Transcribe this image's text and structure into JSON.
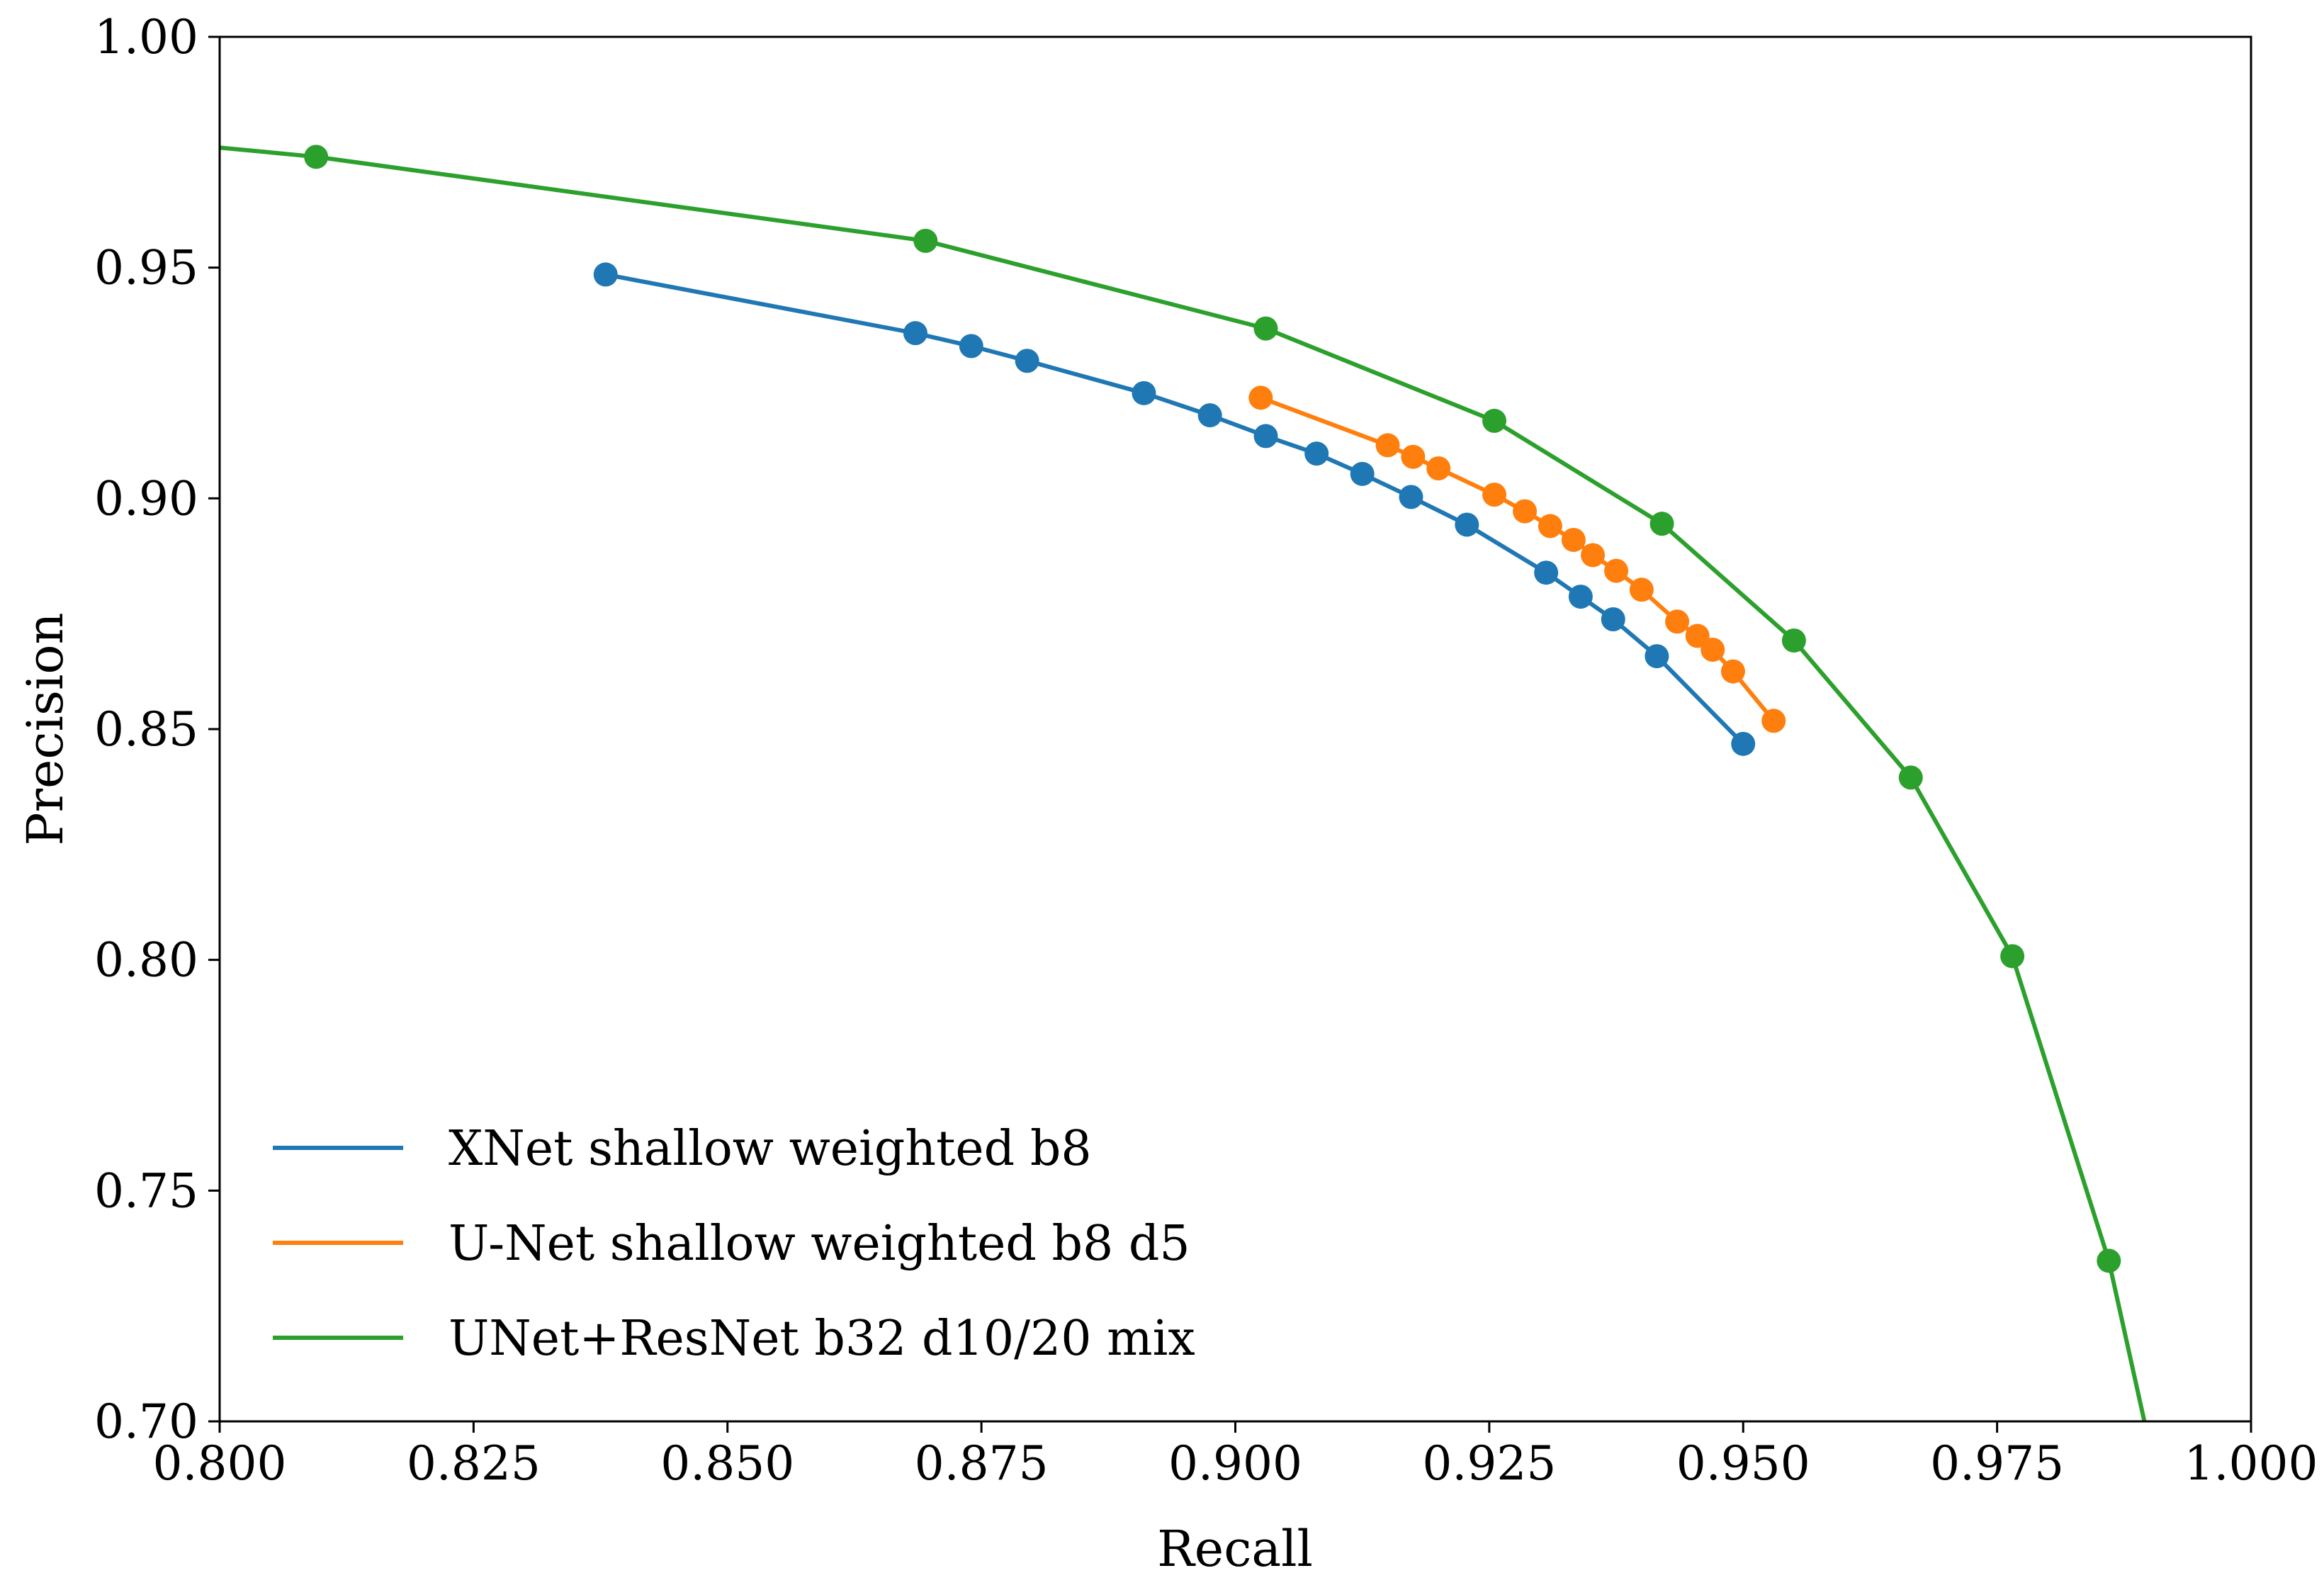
{
  "chart_data": {
    "type": "line",
    "title": "",
    "xlabel": "Recall",
    "ylabel": "Precision",
    "xlim": [
      0.8,
      1.0
    ],
    "ylim": [
      0.7,
      1.0
    ],
    "xticks": [
      0.8,
      0.825,
      0.85,
      0.875,
      0.9,
      0.925,
      0.95,
      0.975,
      1.0
    ],
    "xtick_labels": [
      "0.800",
      "0.825",
      "0.850",
      "0.875",
      "0.900",
      "0.925",
      "0.950",
      "0.975",
      "1.000"
    ],
    "yticks": [
      0.7,
      0.75,
      0.8,
      0.85,
      0.9,
      0.95,
      1.0
    ],
    "ytick_labels": [
      "0.70",
      "0.75",
      "0.80",
      "0.85",
      "0.90",
      "0.95",
      "1.00"
    ],
    "grid": false,
    "legend_position": "lower-left",
    "series": [
      {
        "name": "XNet shallow weighted b8",
        "color": "#1f77b4",
        "markers": true,
        "x": [
          0.838,
          0.8685,
          0.874,
          0.8795,
          0.891,
          0.8975,
          0.903,
          0.908,
          0.9125,
          0.9173,
          0.9228,
          0.9306,
          0.934,
          0.9372,
          0.9415,
          0.95
        ],
        "y": [
          0.9485,
          0.9358,
          0.933,
          0.9298,
          0.9228,
          0.918,
          0.9135,
          0.9097,
          0.9053,
          0.9003,
          0.8943,
          0.8839,
          0.8787,
          0.8738,
          0.8658,
          0.8468
        ]
      },
      {
        "name": "U-Net shallow weighted b8 d5",
        "color": "#ff7f0e",
        "markers": true,
        "x": [
          0.9025,
          0.915,
          0.9175,
          0.92,
          0.9255,
          0.9285,
          0.931,
          0.9333,
          0.9352,
          0.9375,
          0.94,
          0.9435,
          0.9455,
          0.947,
          0.949,
          0.953
        ],
        "y": [
          0.9218,
          0.9115,
          0.909,
          0.9065,
          0.9008,
          0.8972,
          0.894,
          0.891,
          0.8877,
          0.8843,
          0.8802,
          0.8733,
          0.8702,
          0.8672,
          0.8625,
          0.8518
        ]
      },
      {
        "name": "UNet+ResNet b32 d10/20 mix",
        "color": "#2ca02c",
        "markers": true,
        "line_x": [
          0.8,
          0.8095,
          0.8695,
          0.903,
          0.9255,
          0.942,
          0.955,
          0.9665,
          0.9765,
          0.986,
          0.9895
        ],
        "line_y": [
          0.976,
          0.974,
          0.9558,
          0.9368,
          0.9168,
          0.8945,
          0.8692,
          0.8395,
          0.8008,
          0.7348,
          0.7
        ],
        "x": [
          0.8095,
          0.8695,
          0.903,
          0.9255,
          0.942,
          0.955,
          0.9665,
          0.9765,
          0.986
        ],
        "y": [
          0.974,
          0.9558,
          0.9368,
          0.9168,
          0.8945,
          0.8692,
          0.8395,
          0.8008,
          0.7348
        ]
      }
    ]
  }
}
